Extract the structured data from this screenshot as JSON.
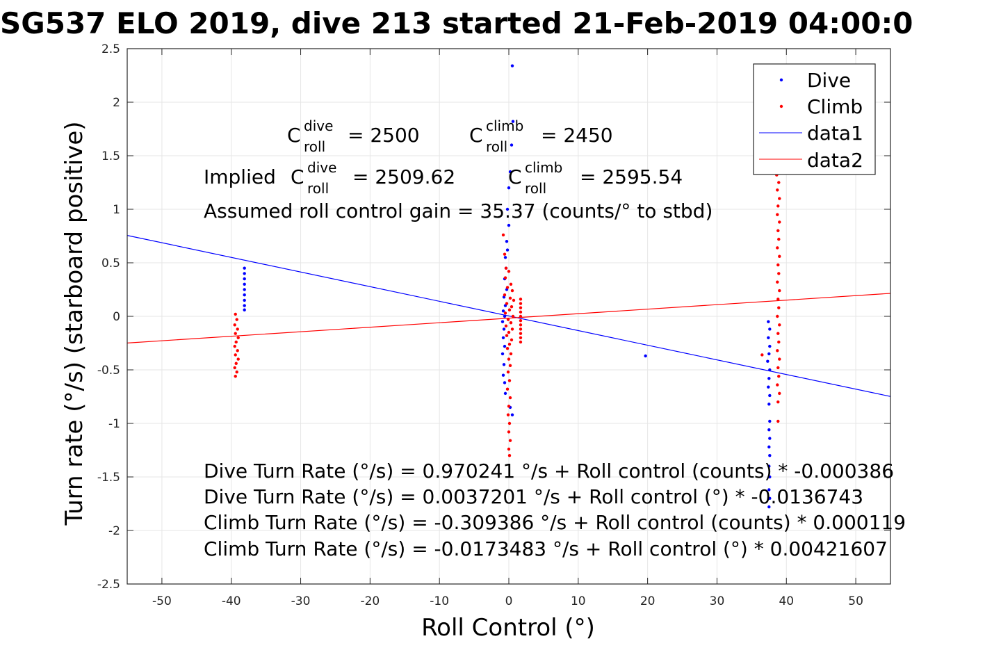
{
  "chart_data": {
    "type": "scatter",
    "title": "SG537 ELO 2019, dive 213 started 21-Feb-2019 04:00:0",
    "xlabel": "Roll Control (°)",
    "ylabel": "Turn rate (°/s) (starboard positive)",
    "xlim": [
      -55,
      55
    ],
    "ylim": [
      -2.5,
      2.5
    ],
    "x_ticks": [
      -50,
      -40,
      -30,
      -20,
      -10,
      0,
      10,
      20,
      30,
      40,
      50
    ],
    "x_tick_labels": [
      "-50",
      "-40",
      "-30",
      "-20",
      "-10",
      "0",
      "10",
      "20",
      "30",
      "40",
      "50"
    ],
    "y_ticks": [
      2.5,
      2,
      1.5,
      1,
      0.5,
      0,
      -0.5,
      -1,
      -1.5,
      -2,
      -2.5
    ],
    "y_tick_labels": [
      "2.5",
      "2",
      "1.5",
      "1",
      "0.5",
      "0",
      "-0.5",
      "-1",
      "-1.5",
      "-2",
      "-2.5"
    ],
    "grid": true,
    "legend": {
      "placement": "top-right",
      "entries": [
        "Dive",
        "Climb",
        "data1",
        "data2"
      ]
    },
    "colors": {
      "dive": "#0000ff",
      "climb": "#ff0000",
      "data1": "#0000ff",
      "data2": "#ff0000"
    },
    "series": [
      {
        "name": "Dive",
        "kind": "points",
        "color": "#0000ff",
        "points": [
          [
            -38.1,
            0.45
          ],
          [
            -38.1,
            0.4
          ],
          [
            -38.1,
            0.35
          ],
          [
            -38.1,
            0.3
          ],
          [
            -38.1,
            0.25
          ],
          [
            -38.1,
            0.2
          ],
          [
            -38.1,
            0.15
          ],
          [
            -38.1,
            0.1
          ],
          [
            -38.1,
            0.06
          ],
          [
            0.5,
            2.34
          ],
          [
            0.6,
            1.82
          ],
          [
            0.4,
            1.6
          ],
          [
            0.2,
            1.35
          ],
          [
            0.0,
            1.2
          ],
          [
            -0.2,
            1.0
          ],
          [
            0.0,
            0.85
          ],
          [
            -0.3,
            0.7
          ],
          [
            -0.2,
            0.62
          ],
          [
            -0.5,
            0.55
          ],
          [
            -0.4,
            0.45
          ],
          [
            -0.6,
            0.35
          ],
          [
            -0.3,
            0.25
          ],
          [
            -0.7,
            0.18
          ],
          [
            -0.5,
            0.1
          ],
          [
            -0.8,
            0.05
          ],
          [
            -0.6,
            0.0
          ],
          [
            -0.9,
            -0.05
          ],
          [
            -0.7,
            -0.12
          ],
          [
            -0.8,
            -0.2
          ],
          [
            -0.6,
            -0.28
          ],
          [
            -0.9,
            -0.35
          ],
          [
            -0.7,
            -0.45
          ],
          [
            -0.8,
            -0.55
          ],
          [
            -0.6,
            -0.62
          ],
          [
            -0.5,
            -0.72
          ],
          [
            0.2,
            -0.85
          ],
          [
            0.5,
            -0.92
          ],
          [
            19.7,
            -0.37
          ],
          [
            37.4,
            -0.05
          ],
          [
            37.6,
            -0.12
          ],
          [
            37.4,
            -0.2
          ],
          [
            37.6,
            -0.28
          ],
          [
            37.5,
            -0.35
          ],
          [
            37.3,
            -0.42
          ],
          [
            37.6,
            -0.5
          ],
          [
            37.5,
            -0.58
          ],
          [
            37.4,
            -0.66
          ],
          [
            37.6,
            -0.74
          ],
          [
            37.5,
            -0.82
          ],
          [
            37.6,
            -0.98
          ],
          [
            37.5,
            -1.06
          ],
          [
            37.6,
            -1.14
          ],
          [
            37.5,
            -1.22
          ],
          [
            37.6,
            -1.3
          ],
          [
            37.5,
            -1.4
          ],
          [
            37.6,
            -1.5
          ],
          [
            37.5,
            -1.62
          ],
          [
            37.6,
            -1.7
          ],
          [
            37.5,
            -1.78
          ]
        ]
      },
      {
        "name": "Climb",
        "kind": "points",
        "color": "#ff0000",
        "points": [
          [
            -39.4,
            0.02
          ],
          [
            -39.2,
            -0.03
          ],
          [
            -39.5,
            -0.08
          ],
          [
            -39.1,
            -0.12
          ],
          [
            -39.4,
            -0.16
          ],
          [
            -39.0,
            -0.2
          ],
          [
            -39.3,
            -0.24
          ],
          [
            -39.5,
            -0.28
          ],
          [
            -39.1,
            -0.32
          ],
          [
            -39.4,
            -0.36
          ],
          [
            -39.0,
            -0.4
          ],
          [
            -39.3,
            -0.44
          ],
          [
            -39.5,
            -0.48
          ],
          [
            -39.2,
            -0.52
          ],
          [
            -39.4,
            -0.56
          ],
          [
            -0.8,
            0.76
          ],
          [
            -0.6,
            0.58
          ],
          [
            -0.4,
            0.45
          ],
          [
            0.0,
            0.42
          ],
          [
            -0.5,
            0.36
          ],
          [
            0.3,
            0.3
          ],
          [
            -0.2,
            0.27
          ],
          [
            0.5,
            0.24
          ],
          [
            -0.6,
            0.2
          ],
          [
            0.2,
            0.17
          ],
          [
            0.7,
            0.15
          ],
          [
            -0.3,
            0.12
          ],
          [
            0.4,
            0.09
          ],
          [
            0.1,
            0.06
          ],
          [
            -0.5,
            0.03
          ],
          [
            0.6,
            0.0
          ],
          [
            -0.1,
            -0.03
          ],
          [
            0.3,
            -0.06
          ],
          [
            -0.4,
            -0.09
          ],
          [
            0.5,
            -0.12
          ],
          [
            0.0,
            -0.15
          ],
          [
            -0.3,
            -0.18
          ],
          [
            0.4,
            -0.22
          ],
          [
            0.1,
            -0.26
          ],
          [
            -0.2,
            -0.3
          ],
          [
            0.3,
            -0.35
          ],
          [
            0.0,
            -0.4
          ],
          [
            0.2,
            -0.46
          ],
          [
            -0.1,
            -0.52
          ],
          [
            0.1,
            -0.6
          ],
          [
            -0.2,
            -0.68
          ],
          [
            0.2,
            -0.76
          ],
          [
            0.0,
            -0.84
          ],
          [
            -0.1,
            -0.92
          ],
          [
            0.1,
            -1.0
          ],
          [
            0.0,
            -1.08
          ],
          [
            0.2,
            -1.16
          ],
          [
            0.0,
            -1.24
          ],
          [
            0.1,
            -1.3
          ],
          [
            1.7,
            0.16
          ],
          [
            1.7,
            0.12
          ],
          [
            1.7,
            0.08
          ],
          [
            1.7,
            0.04
          ],
          [
            1.7,
            0.0
          ],
          [
            1.7,
            -0.04
          ],
          [
            1.7,
            -0.08
          ],
          [
            1.7,
            -0.12
          ],
          [
            1.7,
            -0.16
          ],
          [
            1.7,
            -0.2
          ],
          [
            1.7,
            -0.24
          ],
          [
            36.5,
            -0.36
          ],
          [
            38.6,
            1.32
          ],
          [
            38.9,
            1.25
          ],
          [
            38.7,
            1.18
          ],
          [
            39.0,
            1.1
          ],
          [
            38.8,
            1.03
          ],
          [
            38.7,
            0.95
          ],
          [
            39.0,
            0.88
          ],
          [
            38.8,
            0.8
          ],
          [
            38.9,
            0.72
          ],
          [
            38.7,
            0.64
          ],
          [
            39.0,
            0.56
          ],
          [
            38.8,
            0.48
          ],
          [
            38.9,
            0.4
          ],
          [
            38.7,
            0.32
          ],
          [
            39.0,
            0.24
          ],
          [
            38.8,
            0.16
          ],
          [
            38.9,
            0.08
          ],
          [
            38.7,
            0.0
          ],
          [
            39.0,
            -0.08
          ],
          [
            38.8,
            -0.16
          ],
          [
            38.9,
            -0.24
          ],
          [
            38.7,
            -0.32
          ],
          [
            39.0,
            -0.4
          ],
          [
            38.8,
            -0.48
          ],
          [
            38.9,
            -0.56
          ],
          [
            38.7,
            -0.64
          ],
          [
            39.0,
            -0.72
          ],
          [
            38.8,
            -0.8
          ],
          [
            38.8,
            -0.98
          ]
        ]
      },
      {
        "name": "data1",
        "kind": "line",
        "color": "#0000ff",
        "x": [
          -55,
          55
        ],
        "y": [
          0.7558,
          -0.7484
        ]
      },
      {
        "name": "data2",
        "kind": "line",
        "color": "#ff0000",
        "x": [
          -55,
          55
        ],
        "y": [
          -0.2492,
          0.2145
        ]
      }
    ],
    "annotations": {
      "c_roll_dive": {
        "c": "C",
        "sup": "dive",
        "sub": "roll",
        "value": "= 2500"
      },
      "c_roll_climb": {
        "c": "C",
        "sup": "climb",
        "sub": "roll",
        "value": "= 2450"
      },
      "implied_prefix": "Implied ",
      "implied_dive": {
        "c": "C",
        "sup": "dive",
        "sub": "roll",
        "value": "= 2509.62"
      },
      "implied_climb": {
        "c": "C",
        "sup": "climb",
        "sub": "roll",
        "value": "= 2595.54"
      },
      "gain": "Assumed roll control gain = 35.37 (counts/° to stbd)",
      "fits": [
        "Dive Turn Rate (°/s) = 0.970241 °/s + Roll control (counts) * -0.000386",
        "Dive Turn Rate (°/s) = 0.0037201 °/s + Roll control (°) * -0.0136743",
        "Climb Turn Rate (°/s) = -0.309386 °/s + Roll control (counts) * 0.000119",
        "Climb Turn Rate (°/s) = -0.0173483 °/s + Roll control (°) * 0.00421607"
      ]
    }
  }
}
